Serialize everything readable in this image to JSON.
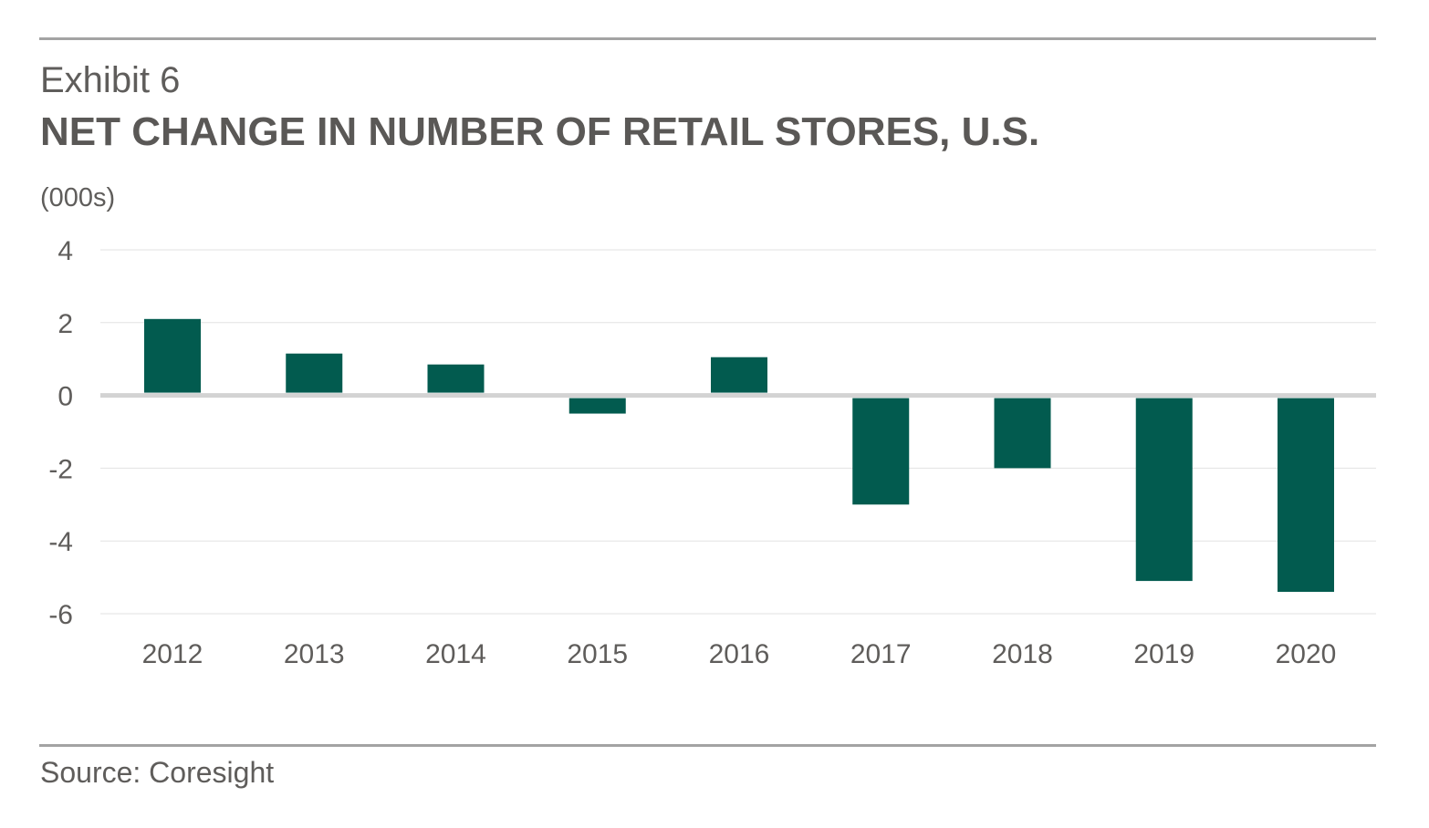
{
  "header": {
    "exhibit": "Exhibit 6",
    "title": "NET CHANGE IN NUMBER OF RETAIL STORES, U.S."
  },
  "footer": {
    "source": "Source: Coresight"
  },
  "colors": {
    "bar": "#025b4f",
    "gridline": "#e2e2e2",
    "zero_line": "#d3d3d3",
    "rule": "#a3a3a3",
    "text": "#5f5d5b"
  },
  "chart_data": {
    "type": "bar",
    "title": "NET CHANGE IN NUMBER OF RETAIL STORES, U.S.",
    "ylabel": "(000s)",
    "xlabel": "",
    "categories": [
      "2012",
      "2013",
      "2014",
      "2015",
      "2016",
      "2017",
      "2018",
      "2019",
      "2020"
    ],
    "values": [
      2.1,
      1.15,
      0.85,
      -0.5,
      1.05,
      -3.0,
      -2.0,
      -5.1,
      -5.4
    ],
    "ylim": [
      -6,
      4
    ],
    "yticks": [
      4,
      2,
      0,
      -2,
      -4,
      -6
    ],
    "ytick_labels": [
      "4",
      "2",
      "0",
      "-2",
      "-4",
      "-6"
    ],
    "grid": true,
    "legend": "none"
  }
}
